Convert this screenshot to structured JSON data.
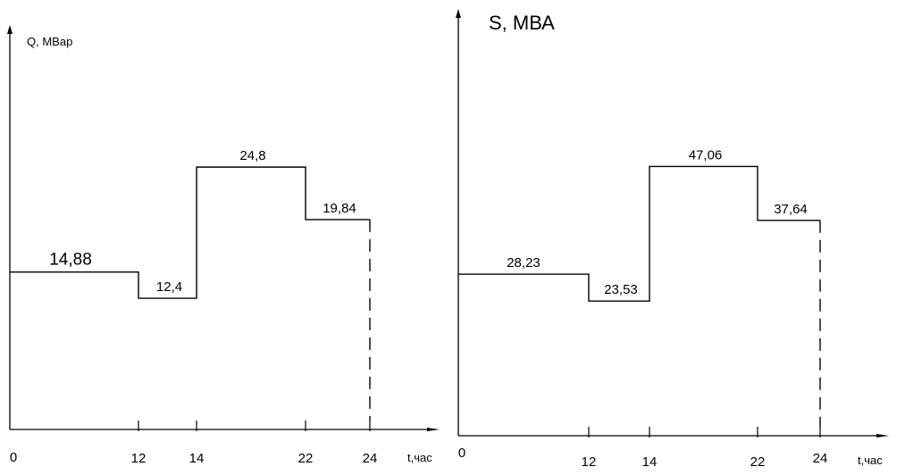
{
  "chart_data": [
    {
      "type": "line",
      "step": true,
      "ylabel": "Q, МВар",
      "xlabel": "t,час",
      "x_ticks": [
        "0",
        "12",
        "14",
        "22",
        "24"
      ],
      "segments": [
        {
          "x_start": 0,
          "x_end": 12,
          "value": 14.88,
          "label": "14,88"
        },
        {
          "x_start": 12,
          "x_end": 14,
          "value": 12.4,
          "label": "12,4"
        },
        {
          "x_start": 14,
          "x_end": 22,
          "value": 24.8,
          "label": "24,8"
        },
        {
          "x_start": 22,
          "x_end": 24,
          "value": 19.84,
          "label": "19,84"
        }
      ],
      "xlim": [
        0,
        24
      ],
      "ylim": [
        0,
        40
      ],
      "grid": false,
      "dashed_marker_x": 24
    },
    {
      "type": "line",
      "step": true,
      "ylabel": "S, МВА",
      "xlabel": "t,час",
      "x_ticks": [
        "0",
        "12",
        "14",
        "22",
        "24"
      ],
      "segments": [
        {
          "x_start": 0,
          "x_end": 12,
          "value": 28.23,
          "label": "28,23"
        },
        {
          "x_start": 12,
          "x_end": 14,
          "value": 23.53,
          "label": "23,53"
        },
        {
          "x_start": 14,
          "x_end": 22,
          "value": 47.06,
          "label": "47,06"
        },
        {
          "x_start": 22,
          "x_end": 24,
          "value": 37.64,
          "label": "37,64"
        }
      ],
      "xlim": [
        0,
        24
      ],
      "ylim": [
        0,
        76
      ],
      "grid": false,
      "dashed_marker_x": 24
    }
  ]
}
